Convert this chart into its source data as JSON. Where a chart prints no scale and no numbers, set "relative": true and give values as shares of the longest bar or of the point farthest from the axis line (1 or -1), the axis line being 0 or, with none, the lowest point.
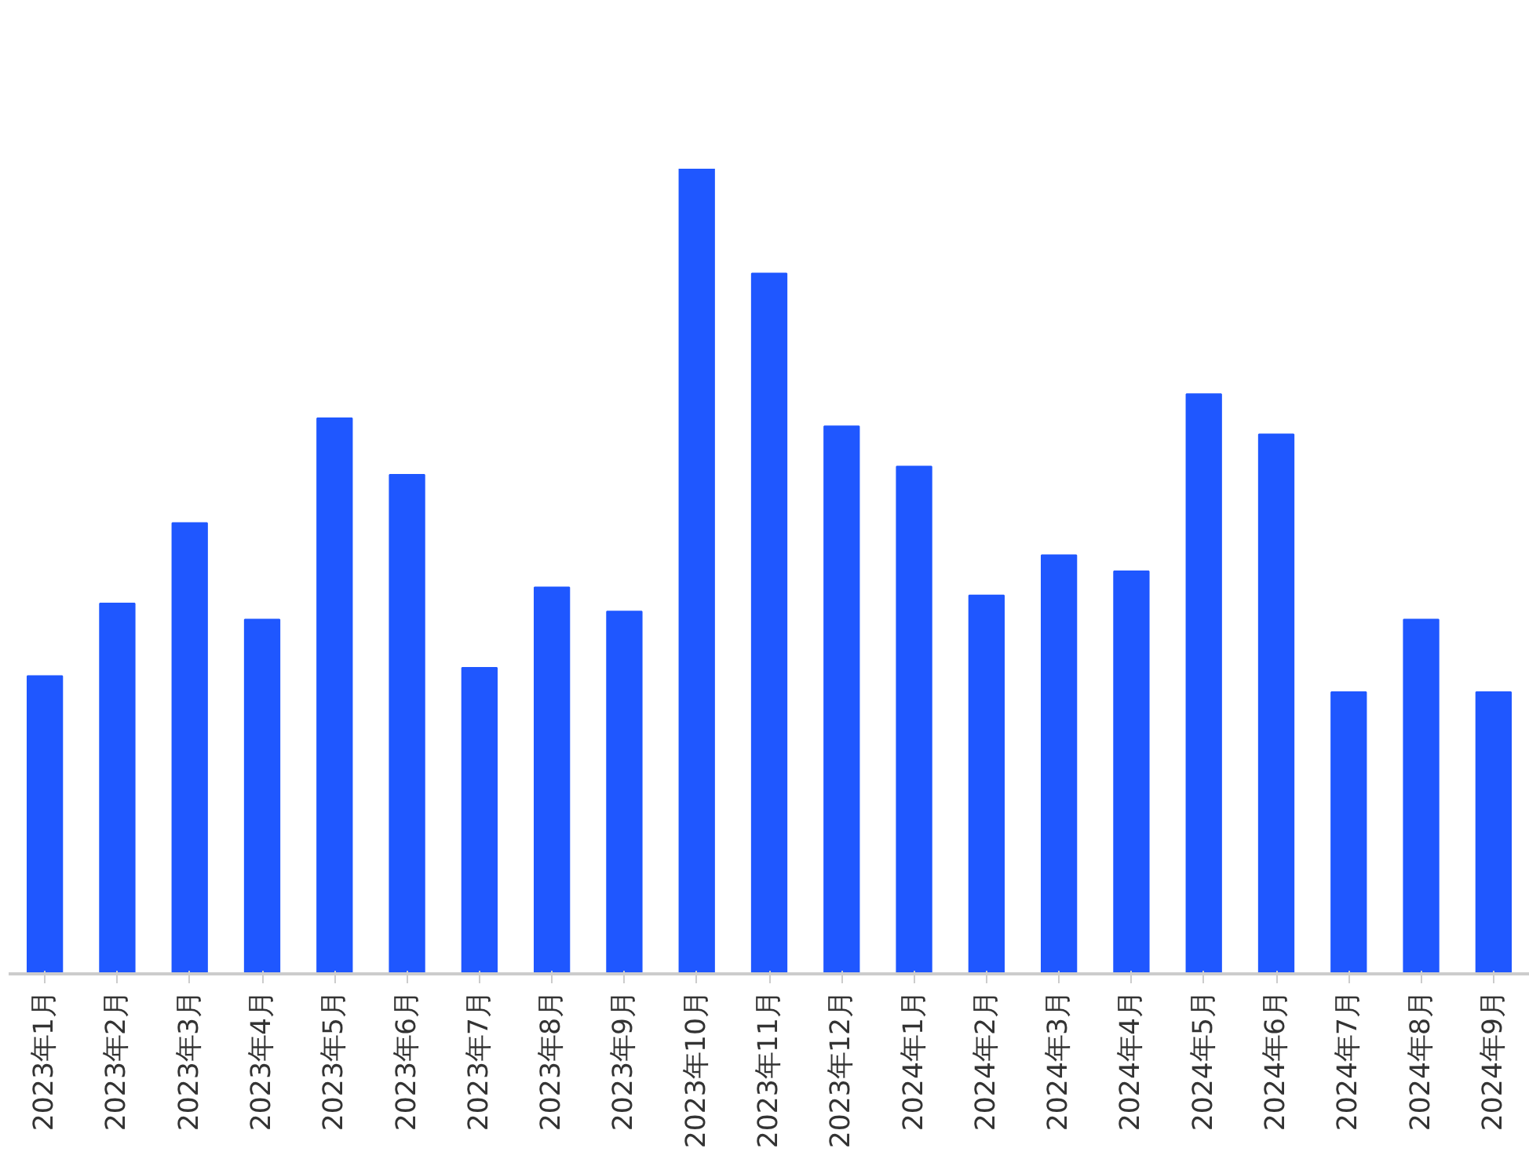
{
  "chart_data": {
    "type": "bar",
    "relative": true,
    "color": "#1f57ff",
    "grid": false,
    "categories": [
      "2023年1月",
      "2023年2月",
      "2023年3月",
      "2023年4月",
      "2023年5月",
      "2023年6月",
      "2023年7月",
      "2023年8月",
      "2023年9月",
      "2023年10月",
      "2023年11月",
      "2023年12月",
      "2024年1月",
      "2024年2月",
      "2024年3月",
      "2024年4月",
      "2024年5月",
      "2024年6月",
      "2024年7月",
      "2024年8月",
      "2024年9月"
    ],
    "values": [
      0.37,
      0.46,
      0.56,
      0.44,
      0.69,
      0.62,
      0.38,
      0.48,
      0.45,
      1,
      0.87,
      0.68,
      0.63,
      0.47,
      0.52,
      0.5,
      0.72,
      0.67,
      0.35,
      0.44,
      0.35
    ]
  }
}
